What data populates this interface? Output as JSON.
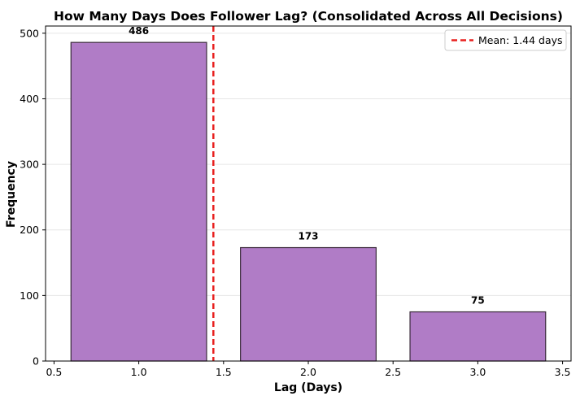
{
  "chart_data": {
    "type": "bar",
    "title": "How Many Days Does Follower Lag? (Consolidated Across All Decisions)",
    "xlabel": "Lag (Days)",
    "ylabel": "Frequency",
    "x": [
      1.0,
      2.0,
      3.0
    ],
    "values": [
      486,
      173,
      75
    ],
    "data_labels": [
      "486",
      "173",
      "75"
    ],
    "bar_width": 0.8,
    "bar_color": "#b07cc6",
    "bar_edge_color": "#3a2a3a",
    "xlim": [
      0.45,
      3.55
    ],
    "ylim": [
      0,
      511
    ],
    "xticks": [
      0.5,
      1.0,
      1.5,
      2.0,
      2.5,
      3.0,
      3.5
    ],
    "xtick_labels": [
      "0.5",
      "1.0",
      "1.5",
      "2.0",
      "2.5",
      "3.0",
      "3.5"
    ],
    "yticks": [
      0,
      100,
      200,
      300,
      400,
      500
    ],
    "ytick_labels": [
      "0",
      "100",
      "200",
      "300",
      "400",
      "500"
    ],
    "grid": "y",
    "mean_line": {
      "value": 1.44,
      "label": "Mean: 1.44 days",
      "color": "#e8201f",
      "style": "dashed"
    },
    "legend_position": "top-right"
  }
}
